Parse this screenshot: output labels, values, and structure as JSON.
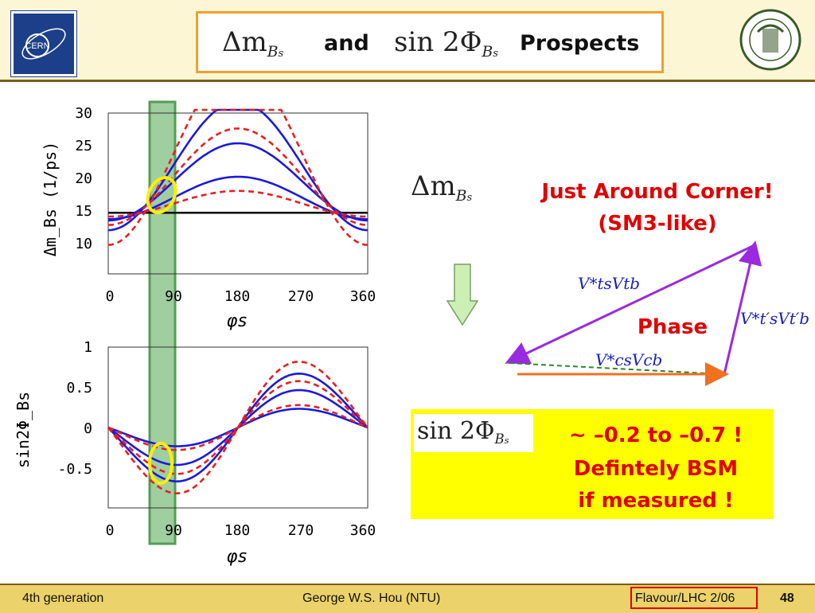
{
  "header": {
    "title_part1_math": "Δm",
    "title_part1_sub": "B",
    "title_part1_subsub": "s",
    "title_and": "and",
    "title_part2_math": "sin 2Φ",
    "title_part2_sub": "B",
    "title_part2_subsub": "s",
    "title_prospects": "Prospects",
    "cern_logo_text": "CERN"
  },
  "plot_top": {
    "ylabel": "Δm_Bs (1/ps)",
    "xlabel": "φs",
    "yticks": [
      "30",
      "25",
      "20",
      "15",
      "10"
    ],
    "xticks": [
      "0",
      "90",
      "180",
      "270",
      "360"
    ]
  },
  "plot_bottom": {
    "ylabel": "sin2Φ_Bs",
    "xlabel": "φs",
    "yticks": [
      "1",
      "0.5",
      "0",
      "-0.5"
    ],
    "xticks": [
      "0",
      "90",
      "180",
      "270",
      "360"
    ]
  },
  "right": {
    "dm_label_math": "Δm",
    "dm_label_sub": "B",
    "dm_label_subsub": "s",
    "just_around": "Just Around Corner!",
    "sm3_like": "(SM3-like)",
    "phase": "Phase",
    "vec_ts": "V*tsVtb",
    "vec_tps": "V*t′sVt′b",
    "vec_cs": "V*csVcb",
    "sin_label_math": "sin 2Φ",
    "sin_label_sub": "B",
    "sin_label_subsub": "s",
    "range_text": "~ –0.2 to –0.7 !",
    "definitely": "Defintely BSM",
    "if_measured": "if measured !"
  },
  "footer": {
    "left": "4th generation",
    "center": "George W.S. Hou (NTU)",
    "conference": "Flavour/LHC 2/06",
    "page": "48"
  },
  "colors": {
    "header_bg": "#fcf6d4",
    "footer_bg": "#ecd26a",
    "blue_curve": "#1a1adc",
    "red_curve": "#e52020",
    "green_band": "#8fc68f",
    "highlight_yellow": "#ffff00",
    "accent_red": "#e00000",
    "arrow_purple": "#9a2ae0",
    "arrow_orange": "#f07020"
  }
}
